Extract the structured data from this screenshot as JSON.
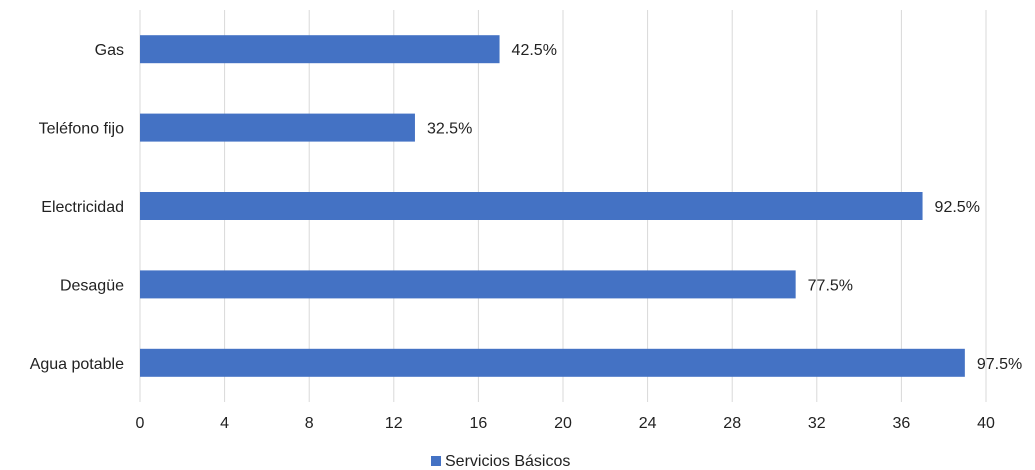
{
  "chart_data": {
    "type": "bar",
    "orientation": "horizontal",
    "categories": [
      "Gas",
      "Teléfono fijo",
      "Electricidad",
      "Desagüe",
      "Agua potable"
    ],
    "series": [
      {
        "name": "Servicios Básicos",
        "values": [
          17,
          13,
          37,
          31,
          39
        ],
        "data_labels": [
          "42.5%",
          "32.5%",
          "92.5%",
          "77.5%",
          "97.5%"
        ],
        "color": "#4472C4"
      }
    ],
    "xlim": [
      0,
      40
    ],
    "x_ticks": [
      0,
      4,
      8,
      12,
      16,
      20,
      24,
      28,
      32,
      36,
      40
    ],
    "grid": "vertical",
    "legend_position": "bottom",
    "title": "",
    "xlabel": "",
    "ylabel": ""
  }
}
